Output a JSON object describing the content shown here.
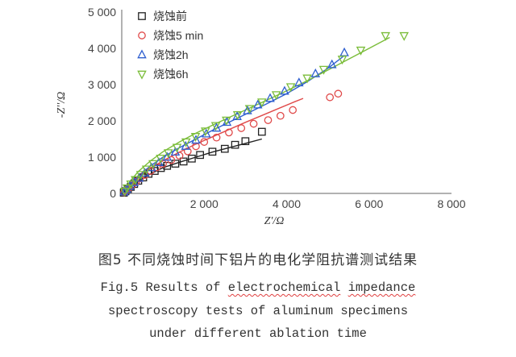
{
  "chart_data": {
    "type": "scatter",
    "xlabel": "Z'/Ω",
    "ylabel": "-Z''/Ω",
    "xlim": [
      0,
      8000
    ],
    "ylim": [
      0,
      5000
    ],
    "xticks": [
      "2 000",
      "4 000",
      "6 000",
      "8 000"
    ],
    "yticks": [
      "0",
      "1 000",
      "2 000",
      "3 000",
      "4 000",
      "5 000"
    ],
    "legend_position": "top-left",
    "grid": false,
    "series": [
      {
        "name": "烧蚀前",
        "marker": "square",
        "color": "#222222",
        "points": [
          [
            50,
            20
          ],
          [
            90,
            60
          ],
          [
            150,
            120
          ],
          [
            220,
            180
          ],
          [
            300,
            260
          ],
          [
            400,
            350
          ],
          [
            520,
            440
          ],
          [
            650,
            540
          ],
          [
            800,
            620
          ],
          [
            950,
            700
          ],
          [
            1100,
            760
          ],
          [
            1300,
            820
          ],
          [
            1500,
            880
          ],
          [
            1700,
            960
          ],
          [
            1900,
            1060
          ],
          [
            2200,
            1150
          ],
          [
            2500,
            1230
          ],
          [
            2750,
            1340
          ],
          [
            3000,
            1440
          ],
          [
            3400,
            1700
          ]
        ],
        "fit": [
          [
            50,
            20
          ],
          [
            200,
            170
          ],
          [
            400,
            340
          ],
          [
            700,
            540
          ],
          [
            1000,
            710
          ],
          [
            1400,
            860
          ],
          [
            1800,
            1000
          ],
          [
            2200,
            1140
          ],
          [
            2600,
            1260
          ],
          [
            3000,
            1380
          ],
          [
            3400,
            1500
          ]
        ]
      },
      {
        "name": "烧蚀5 min",
        "marker": "circle",
        "color": "#e04a4a",
        "points": [
          [
            60,
            30
          ],
          [
            110,
            80
          ],
          [
            170,
            150
          ],
          [
            250,
            230
          ],
          [
            340,
            320
          ],
          [
            440,
            410
          ],
          [
            560,
            510
          ],
          [
            700,
            620
          ],
          [
            850,
            720
          ],
          [
            1000,
            820
          ],
          [
            1200,
            920
          ],
          [
            1400,
            1040
          ],
          [
            1600,
            1160
          ],
          [
            1800,
            1300
          ],
          [
            2000,
            1420
          ],
          [
            2300,
            1540
          ],
          [
            2600,
            1680
          ],
          [
            2900,
            1800
          ],
          [
            3200,
            1920
          ],
          [
            3550,
            2020
          ],
          [
            3850,
            2140
          ],
          [
            4150,
            2300
          ],
          [
            5050,
            2650
          ],
          [
            5250,
            2750
          ]
        ],
        "fit": [
          [
            60,
            30
          ],
          [
            200,
            230
          ],
          [
            400,
            430
          ],
          [
            700,
            690
          ],
          [
            1000,
            900
          ],
          [
            1400,
            1140
          ],
          [
            1800,
            1360
          ],
          [
            2200,
            1560
          ],
          [
            2600,
            1760
          ],
          [
            3000,
            1960
          ],
          [
            3400,
            2150
          ],
          [
            3800,
            2340
          ],
          [
            4200,
            2530
          ],
          [
            4400,
            2620
          ]
        ]
      },
      {
        "name": "烧蚀2h",
        "marker": "triangle-up",
        "color": "#2f5fcf",
        "points": [
          [
            60,
            40
          ],
          [
            120,
            110
          ],
          [
            200,
            200
          ],
          [
            300,
            300
          ],
          [
            420,
            420
          ],
          [
            560,
            560
          ],
          [
            720,
            710
          ],
          [
            900,
            850
          ],
          [
            1100,
            1000
          ],
          [
            1300,
            1140
          ],
          [
            1550,
            1300
          ],
          [
            1800,
            1470
          ],
          [
            2050,
            1640
          ],
          [
            2300,
            1800
          ],
          [
            2550,
            1960
          ],
          [
            2800,
            2120
          ],
          [
            3050,
            2280
          ],
          [
            3300,
            2440
          ],
          [
            3600,
            2620
          ],
          [
            3950,
            2820
          ],
          [
            4300,
            3050
          ],
          [
            4700,
            3300
          ],
          [
            5100,
            3550
          ],
          [
            5400,
            3880
          ]
        ],
        "fit": [
          [
            60,
            40
          ],
          [
            200,
            260
          ],
          [
            400,
            480
          ],
          [
            700,
            760
          ],
          [
            1000,
            1000
          ],
          [
            1400,
            1260
          ],
          [
            1800,
            1500
          ],
          [
            2200,
            1740
          ],
          [
            2600,
            1960
          ],
          [
            3000,
            2180
          ],
          [
            3500,
            2460
          ],
          [
            4000,
            2750
          ],
          [
            4500,
            3080
          ],
          [
            5000,
            3450
          ],
          [
            5400,
            3800
          ]
        ]
      },
      {
        "name": "烧蚀6h",
        "marker": "triangle-down",
        "color": "#7bbd3a",
        "points": [
          [
            70,
            60
          ],
          [
            130,
            150
          ],
          [
            220,
            260
          ],
          [
            330,
            380
          ],
          [
            460,
            520
          ],
          [
            600,
            670
          ],
          [
            760,
            820
          ],
          [
            940,
            970
          ],
          [
            1130,
            1120
          ],
          [
            1340,
            1270
          ],
          [
            1560,
            1420
          ],
          [
            1790,
            1570
          ],
          [
            2030,
            1720
          ],
          [
            2280,
            1870
          ],
          [
            2540,
            2020
          ],
          [
            2810,
            2170
          ],
          [
            3100,
            2340
          ],
          [
            3400,
            2520
          ],
          [
            3750,
            2720
          ],
          [
            4100,
            2940
          ],
          [
            4500,
            3180
          ],
          [
            4900,
            3420
          ],
          [
            5350,
            3700
          ],
          [
            5800,
            3950
          ],
          [
            6400,
            4350
          ],
          [
            6850,
            4350
          ]
        ],
        "fit": [
          [
            70,
            60
          ],
          [
            200,
            330
          ],
          [
            400,
            600
          ],
          [
            700,
            900
          ],
          [
            1000,
            1150
          ],
          [
            1400,
            1420
          ],
          [
            1800,
            1660
          ],
          [
            2200,
            1880
          ],
          [
            2600,
            2090
          ],
          [
            3000,
            2300
          ],
          [
            3500,
            2560
          ],
          [
            4000,
            2830
          ],
          [
            4500,
            3110
          ],
          [
            5000,
            3400
          ],
          [
            5500,
            3700
          ],
          [
            6000,
            4000
          ],
          [
            6500,
            4300
          ]
        ]
      }
    ]
  },
  "caption": {
    "chinese": "图5  不同烧蚀时间下铝片的电化学阻抗谱测试结果",
    "english_line1_prefix": "Fig.5  Results of ",
    "english_line1_wavy1": "electrochemical",
    "english_line1_mid": " ",
    "english_line1_wavy2": "impedance",
    "english_line2": "spectroscopy tests of aluminum specimens",
    "english_line3": "under different ablation time"
  }
}
